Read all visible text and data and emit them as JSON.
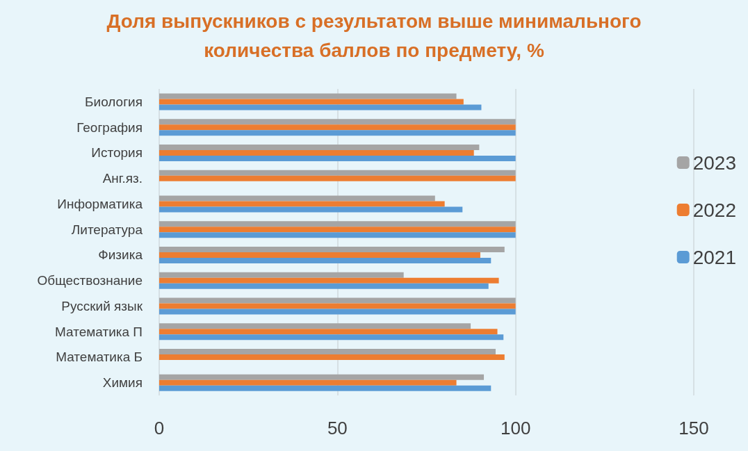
{
  "chart_data": {
    "type": "bar",
    "orientation": "horizontal",
    "title": "Доля выпускников с результатом выше минимального\nколичества баллов по предмету, %",
    "categories": [
      "Биология",
      "География",
      "История",
      "Анг.яз.",
      "Информатика",
      "Литература",
      "Физика",
      "Обществознание",
      "Русский язык",
      "Математика П",
      "Математика Б",
      "Химия"
    ],
    "series": [
      {
        "name": "2023",
        "color": "#a5a5a5",
        "values": [
          83.4,
          100,
          89.8,
          100,
          77.4,
          100,
          96.9,
          68.6,
          100,
          87.4,
          94.4,
          91.1
        ]
      },
      {
        "name": "2022",
        "color": "#ed7d31",
        "values": [
          85.4,
          100,
          88.3,
          100,
          80.1,
          100,
          90.1,
          95.3,
          100,
          94.9,
          96.9,
          83.4
        ]
      },
      {
        "name": "2021",
        "color": "#5b9bd5",
        "values": [
          90.4,
          100,
          100,
          null,
          85.1,
          100,
          93.1,
          92.4,
          100,
          96.6,
          null,
          93.1
        ]
      }
    ],
    "xlim": [
      0,
      150
    ],
    "xticks": [
      0,
      50,
      100,
      150
    ],
    "grid": "x",
    "legend": "right"
  }
}
